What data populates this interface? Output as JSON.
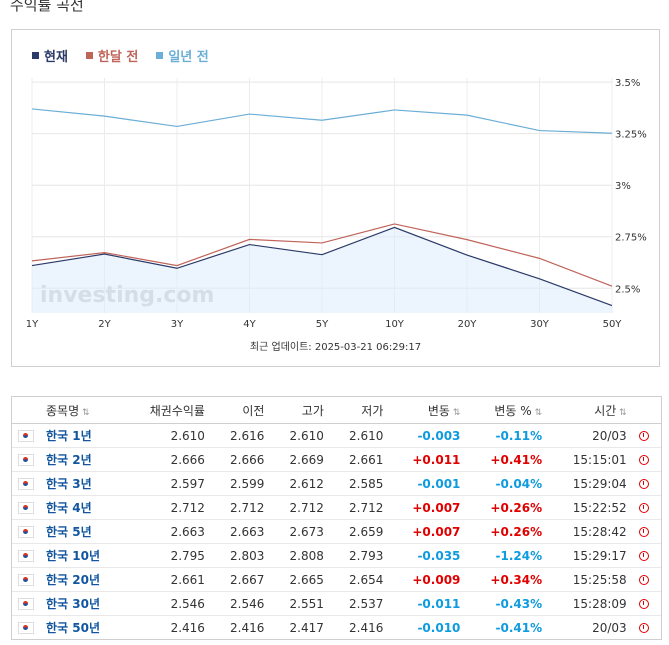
{
  "page_title": "수익률 곡선",
  "chart_data": {
    "type": "line",
    "categories": [
      "1Y",
      "2Y",
      "3Y",
      "4Y",
      "5Y",
      "10Y",
      "20Y",
      "30Y",
      "50Y"
    ],
    "series": [
      {
        "name": "현재",
        "color": "#2b3a67",
        "values": [
          2.61,
          2.666,
          2.597,
          2.712,
          2.663,
          2.795,
          2.661,
          2.546,
          2.416
        ]
      },
      {
        "name": "한달 전",
        "color": "#c0645a",
        "values": [
          2.633,
          2.673,
          2.61,
          2.737,
          2.72,
          2.812,
          2.736,
          2.645,
          2.51
        ]
      },
      {
        "name": "일년 전",
        "color": "#6baed6",
        "values": [
          3.37,
          3.335,
          3.285,
          3.345,
          3.315,
          3.365,
          3.34,
          3.265,
          3.252
        ]
      }
    ],
    "y_ticks": [
      {
        "value": 3.5,
        "label": "3.5%"
      },
      {
        "value": 3.25,
        "label": "3.25%"
      },
      {
        "value": 3.0,
        "label": "3%"
      },
      {
        "value": 2.75,
        "label": "2.75%"
      },
      {
        "value": 2.5,
        "label": "2.5%"
      }
    ],
    "ylim": [
      2.38,
      3.52
    ],
    "grid": true,
    "legend_position": "top-left",
    "watermark": "investing.com",
    "update_label": "최근 업데이트: 2025-03-21 06:29:17"
  },
  "table": {
    "headers": [
      "종목명",
      "채권수익률",
      "이전",
      "고가",
      "저가",
      "변동",
      "변동 %",
      "시간"
    ],
    "rows": [
      {
        "name": "한국 1년",
        "yield": "2.610",
        "prev": "2.616",
        "high": "2.610",
        "low": "2.610",
        "chg": "-0.003",
        "chg_pct": "-0.11%",
        "time": "20/03",
        "dir": "down"
      },
      {
        "name": "한국 2년",
        "yield": "2.666",
        "prev": "2.666",
        "high": "2.669",
        "low": "2.661",
        "chg": "+0.011",
        "chg_pct": "+0.41%",
        "time": "15:15:01",
        "dir": "up"
      },
      {
        "name": "한국 3년",
        "yield": "2.597",
        "prev": "2.599",
        "high": "2.612",
        "low": "2.585",
        "chg": "-0.001",
        "chg_pct": "-0.04%",
        "time": "15:29:04",
        "dir": "down"
      },
      {
        "name": "한국 4년",
        "yield": "2.712",
        "prev": "2.712",
        "high": "2.712",
        "low": "2.712",
        "chg": "+0.007",
        "chg_pct": "+0.26%",
        "time": "15:22:52",
        "dir": "up"
      },
      {
        "name": "한국 5년",
        "yield": "2.663",
        "prev": "2.663",
        "high": "2.673",
        "low": "2.659",
        "chg": "+0.007",
        "chg_pct": "+0.26%",
        "time": "15:28:42",
        "dir": "up"
      },
      {
        "name": "한국 10년",
        "yield": "2.795",
        "prev": "2.803",
        "high": "2.808",
        "low": "2.793",
        "chg": "-0.035",
        "chg_pct": "-1.24%",
        "time": "15:29:17",
        "dir": "down"
      },
      {
        "name": "한국 20년",
        "yield": "2.661",
        "prev": "2.667",
        "high": "2.665",
        "low": "2.654",
        "chg": "+0.009",
        "chg_pct": "+0.34%",
        "time": "15:25:58",
        "dir": "up"
      },
      {
        "name": "한국 30년",
        "yield": "2.546",
        "prev": "2.546",
        "high": "2.551",
        "low": "2.537",
        "chg": "-0.011",
        "chg_pct": "-0.43%",
        "time": "15:28:09",
        "dir": "down"
      },
      {
        "name": "한국 50년",
        "yield": "2.416",
        "prev": "2.416",
        "high": "2.417",
        "low": "2.416",
        "chg": "-0.010",
        "chg_pct": "-0.41%",
        "time": "20/03",
        "dir": "down"
      }
    ]
  }
}
